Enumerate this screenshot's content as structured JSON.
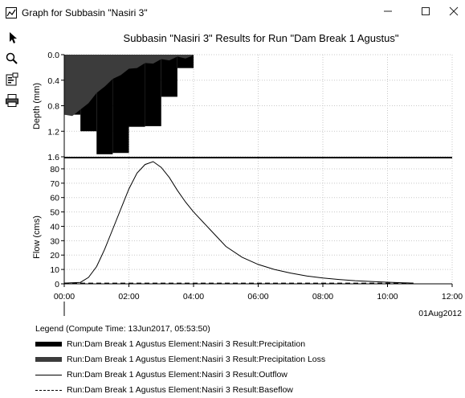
{
  "window": {
    "title": "Graph for Subbasin \"Nasiri 3\"",
    "minimize": "—",
    "maximize": "☐",
    "close": "✕"
  },
  "toolbar": {
    "tools": [
      "pointer-icon",
      "zoom-icon",
      "properties-icon",
      "print-icon"
    ]
  },
  "colors": {
    "precipitation": "#000000",
    "precipitation_loss": "#3c3c3c",
    "grid": "#c8c8c8"
  },
  "legend": {
    "title": "Legend (Compute Time: 13Jun2017, 05:53:50)",
    "items": [
      "Run:Dam Break 1 Agustus Element:Nasiri 3 Result:Precipitation",
      "Run:Dam Break 1 Agustus Element:Nasiri 3 Result:Precipitation Loss",
      "Run:Dam Break 1 Agustus Element:Nasiri 3 Result:Outflow",
      "Run:Dam Break 1 Agustus Element:Nasiri 3 Result:Baseflow"
    ]
  },
  "chart_data": {
    "title": "Subbasin \"Nasiri 3\" Results for Run \"Dam Break 1 Agustus\"",
    "x_ticks": [
      "00:00",
      "02:00",
      "04:00",
      "06:00",
      "08:00",
      "10:00",
      "12:00"
    ],
    "x_date": "01Aug2012",
    "x_range_hours": [
      0,
      12
    ],
    "grid": true,
    "legend_position": "bottom",
    "top_panel": {
      "type": "bar",
      "ylabel": "Depth (mm)",
      "y_range": [
        0,
        1.6
      ],
      "y_inverted": true,
      "y_ticks": [
        "0.0",
        "0.4",
        "0.8",
        "1.2",
        "1.6"
      ],
      "interval_hours": 0.5,
      "intervals_start_hours": [
        0.0,
        0.5,
        1.0,
        1.5,
        2.0,
        2.5,
        3.0,
        3.5
      ],
      "series": [
        {
          "name": "Run:Dam Break 1 Agustus Element:Nasiri 3 Result:Precipitation",
          "values": [
            0.94,
            1.2,
            1.56,
            1.54,
            1.13,
            1.12,
            0.66,
            0.21
          ]
        },
        {
          "name": "Run:Dam Break 1 Agustus Element:Nasiri 3 Result:Precipitation Loss",
          "x_hours": [
            0.0,
            0.25,
            0.5,
            0.75,
            1.0,
            1.25,
            1.5,
            1.75,
            2.0,
            2.25,
            2.5,
            2.75,
            3.0,
            3.25,
            3.5,
            3.75,
            4.0
          ],
          "values": [
            0.94,
            0.92,
            0.86,
            0.72,
            0.6,
            0.46,
            0.38,
            0.28,
            0.22,
            0.17,
            0.13,
            0.1,
            0.07,
            0.05,
            0.03,
            0.02,
            0.01
          ]
        }
      ]
    },
    "bottom_panel": {
      "type": "line",
      "ylabel": "Flow (cms)",
      "y_range": [
        0,
        85
      ],
      "y_ticks": [
        "0",
        "10",
        "20",
        "30",
        "40",
        "50",
        "60",
        "70",
        "80"
      ],
      "series": [
        {
          "name": "Run:Dam Break 1 Agustus Element:Nasiri 3 Result:Outflow",
          "x_hours": [
            0,
            0.5,
            0.75,
            1.0,
            1.25,
            1.5,
            1.75,
            2.0,
            2.25,
            2.5,
            2.75,
            3.0,
            3.25,
            3.5,
            3.75,
            4.0,
            4.5,
            5.0,
            5.5,
            6.0,
            6.5,
            7.0,
            7.5,
            8.0,
            8.5,
            9.0,
            9.5,
            10.0,
            10.5,
            10.8
          ],
          "values": [
            0.5,
            1.0,
            4.5,
            12,
            24,
            38,
            52,
            66,
            77,
            83,
            85,
            81,
            74,
            65,
            57,
            50,
            38,
            26,
            18.5,
            13.5,
            10,
            7.5,
            5.5,
            4.0,
            3.0,
            2.2,
            1.6,
            1.1,
            0.7,
            0.5
          ]
        },
        {
          "name": "Run:Dam Break 1 Agustus Element:Nasiri 3 Result:Baseflow",
          "x_hours": [
            0,
            10.8
          ],
          "values": [
            0.5,
            0.5
          ]
        }
      ]
    }
  }
}
